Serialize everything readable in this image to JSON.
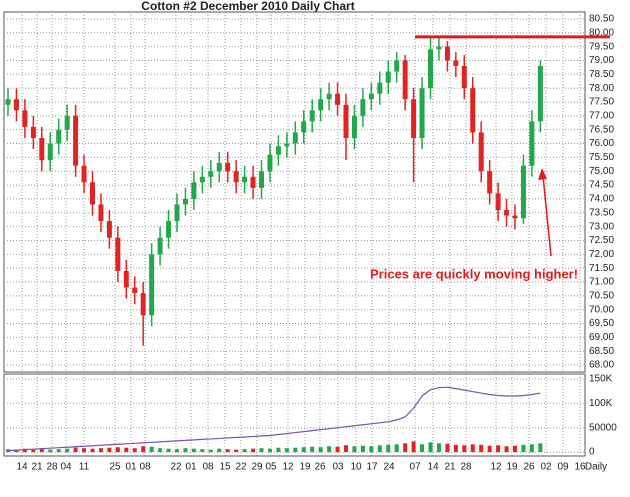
{
  "chart_data": {
    "type": "candlestick",
    "title": "Cotton #2 December 2010 Daily Chart",
    "annotation": "Prices are quickly moving higher!",
    "resistance": 79.85,
    "up_color": "#22a84a",
    "down_color": "#e02424",
    "line_color": "#7b52ab",
    "accent_color": "#e01b1b",
    "grid": true,
    "open": [
      77.4,
      77.6,
      77.2,
      76.6,
      76.2,
      75.4,
      76.0,
      76.5,
      77.0,
      75.2,
      74.6,
      73.8,
      73.2,
      72.6,
      71.4,
      70.8,
      70.6,
      69.8,
      72.0,
      72.6,
      73.2,
      73.8,
      74.0,
      74.6,
      74.8,
      75.0,
      75.3,
      75.0,
      74.6,
      74.8,
      74.4,
      75.0,
      75.6,
      75.9,
      76.0,
      76.4,
      76.8,
      77.2,
      77.6,
      77.8,
      77.4,
      76.2,
      77.0,
      77.6,
      77.8,
      78.2,
      78.6,
      79.0,
      77.6,
      76.2,
      78.0,
      79.4,
      79.5,
      79.0,
      78.8,
      78.0,
      76.4,
      75.0,
      74.2,
      73.6,
      73.4,
      73.3,
      75.2,
      76.8
    ],
    "high": [
      78.0,
      78.0,
      77.6,
      77.0,
      76.6,
      76.4,
      76.9,
      77.4,
      77.4,
      75.6,
      75.0,
      74.2,
      73.6,
      73.0,
      71.8,
      71.2,
      71.0,
      72.4,
      73.0,
      73.6,
      74.2,
      74.4,
      75.0,
      75.2,
      75.4,
      75.7,
      75.7,
      75.4,
      75.2,
      75.2,
      75.4,
      76.0,
      76.3,
      76.4,
      76.8,
      77.2,
      77.6,
      78.0,
      78.2,
      78.2,
      77.8,
      77.4,
      78.0,
      78.2,
      78.6,
      79.0,
      79.3,
      79.2,
      78.0,
      78.4,
      79.8,
      79.8,
      79.7,
      79.3,
      79.2,
      78.4,
      76.8,
      75.4,
      74.6,
      74.0,
      73.8,
      75.6,
      77.2,
      79.0
    ],
    "low": [
      77.0,
      76.8,
      76.2,
      75.8,
      75.0,
      75.0,
      75.6,
      76.1,
      74.8,
      74.2,
      73.4,
      72.8,
      72.2,
      71.0,
      70.4,
      70.2,
      68.7,
      69.4,
      71.6,
      72.2,
      72.8,
      73.4,
      73.6,
      74.2,
      74.4,
      74.6,
      74.6,
      74.2,
      74.2,
      74.0,
      74.0,
      74.6,
      75.2,
      75.5,
      75.6,
      76.0,
      76.4,
      76.8,
      77.2,
      77.0,
      75.4,
      75.8,
      76.6,
      77.2,
      77.4,
      77.8,
      78.2,
      77.2,
      74.6,
      75.8,
      77.6,
      79.0,
      78.6,
      78.4,
      77.6,
      76.0,
      74.6,
      73.8,
      73.2,
      73.0,
      72.9,
      73.1,
      74.8,
      76.4
    ],
    "close": [
      77.6,
      77.2,
      76.6,
      76.2,
      75.4,
      76.0,
      76.5,
      77.0,
      75.2,
      74.6,
      73.8,
      73.2,
      72.6,
      71.4,
      70.8,
      70.6,
      69.8,
      72.0,
      72.6,
      73.2,
      73.8,
      74.0,
      74.6,
      74.8,
      75.0,
      75.3,
      75.0,
      74.6,
      74.8,
      74.4,
      75.0,
      75.6,
      75.9,
      76.0,
      76.4,
      76.8,
      77.2,
      77.6,
      77.8,
      77.4,
      76.2,
      77.0,
      77.6,
      77.8,
      78.2,
      78.6,
      79.0,
      77.6,
      76.2,
      78.0,
      79.4,
      79.5,
      79.0,
      78.8,
      78.0,
      76.4,
      75.0,
      74.2,
      73.6,
      73.4,
      73.3,
      75.2,
      76.8,
      78.8
    ],
    "ylim": [
      67.75,
      80.75
    ],
    "yticks": [
      {
        "value": 68,
        "label": "68.00"
      },
      {
        "value": 68.5,
        "label": "68.50"
      },
      {
        "value": 69,
        "label": "69.00"
      },
      {
        "value": 69.5,
        "label": "69.50"
      },
      {
        "value": 70,
        "label": "70.00"
      },
      {
        "value": 70.5,
        "label": "70.50"
      },
      {
        "value": 71,
        "label": "71.00"
      },
      {
        "value": 71.5,
        "label": "71.50"
      },
      {
        "value": 72,
        "label": "72.00"
      },
      {
        "value": 72.5,
        "label": "72.50"
      },
      {
        "value": 73,
        "label": "73.00"
      },
      {
        "value": 73.5,
        "label": "73.50"
      },
      {
        "value": 74,
        "label": "74.00"
      },
      {
        "value": 74.5,
        "label": "74.50"
      },
      {
        "value": 75,
        "label": "75.00"
      },
      {
        "value": 75.5,
        "label": "75.50"
      },
      {
        "value": 76,
        "label": "76.00"
      },
      {
        "value": 76.5,
        "label": "76.50"
      },
      {
        "value": 77,
        "label": "77.00"
      },
      {
        "value": 77.5,
        "label": "77.50"
      },
      {
        "value": 78,
        "label": "78.00"
      },
      {
        "value": 78.5,
        "label": "78.50"
      },
      {
        "value": 79,
        "label": "79.00"
      },
      {
        "value": 79.5,
        "label": "79.50"
      },
      {
        "value": 80,
        "label": "80.00"
      },
      {
        "value": 80.5,
        "label": "80.50"
      }
    ],
    "volume": [
      6000,
      5000,
      7000,
      6000,
      8000,
      5000,
      6000,
      7000,
      9000,
      8000,
      7000,
      8000,
      9000,
      10000,
      9000,
      8000,
      12000,
      11000,
      8000,
      7000,
      6000,
      8000,
      7000,
      6000,
      5000,
      7000,
      6000,
      5000,
      6000,
      7000,
      8000,
      7000,
      9000,
      8000,
      9000,
      10000,
      11000,
      10000,
      12000,
      11000,
      14000,
      12000,
      13000,
      12000,
      14000,
      15000,
      16000,
      18000,
      22000,
      16000,
      20000,
      18000,
      17000,
      15000,
      14000,
      16000,
      15000,
      13000,
      14000,
      12000,
      13000,
      15000,
      16000,
      18000
    ],
    "open_interest": [
      3000,
      4000,
      5000,
      6000,
      7000,
      8000,
      9000,
      10000,
      11000,
      12000,
      13000,
      14000,
      15000,
      16000,
      17000,
      18000,
      19000,
      20000,
      21000,
      22000,
      23000,
      24000,
      25000,
      26000,
      27000,
      28000,
      29000,
      30000,
      31000,
      32000,
      33000,
      34000,
      36000,
      38000,
      40000,
      42000,
      44000,
      46000,
      48000,
      50000,
      52000,
      54000,
      56000,
      58000,
      60000,
      62000,
      66000,
      72000,
      90000,
      115000,
      128000,
      132000,
      133000,
      130000,
      127000,
      124000,
      121000,
      118000,
      116000,
      115000,
      115000,
      116000,
      118000,
      121000
    ],
    "y2lim": [
      -8000,
      160000
    ],
    "y2ticks": [
      0,
      50000,
      {
        "value": 100000,
        "label": "100K"
      },
      {
        "value": 150000,
        "label": "150K"
      }
    ],
    "x_labels": [
      "14",
      "21",
      "28",
      "04",
      "11",
      "25",
      "01",
      "08",
      "22",
      "01",
      "08",
      "15",
      "22",
      "29",
      "05",
      "12",
      "19",
      "26",
      "03",
      "10",
      "17",
      "24",
      "07",
      "14",
      "21",
      "28",
      "12",
      "19",
      "26",
      "02",
      "09",
      "16",
      "Daily"
    ]
  }
}
